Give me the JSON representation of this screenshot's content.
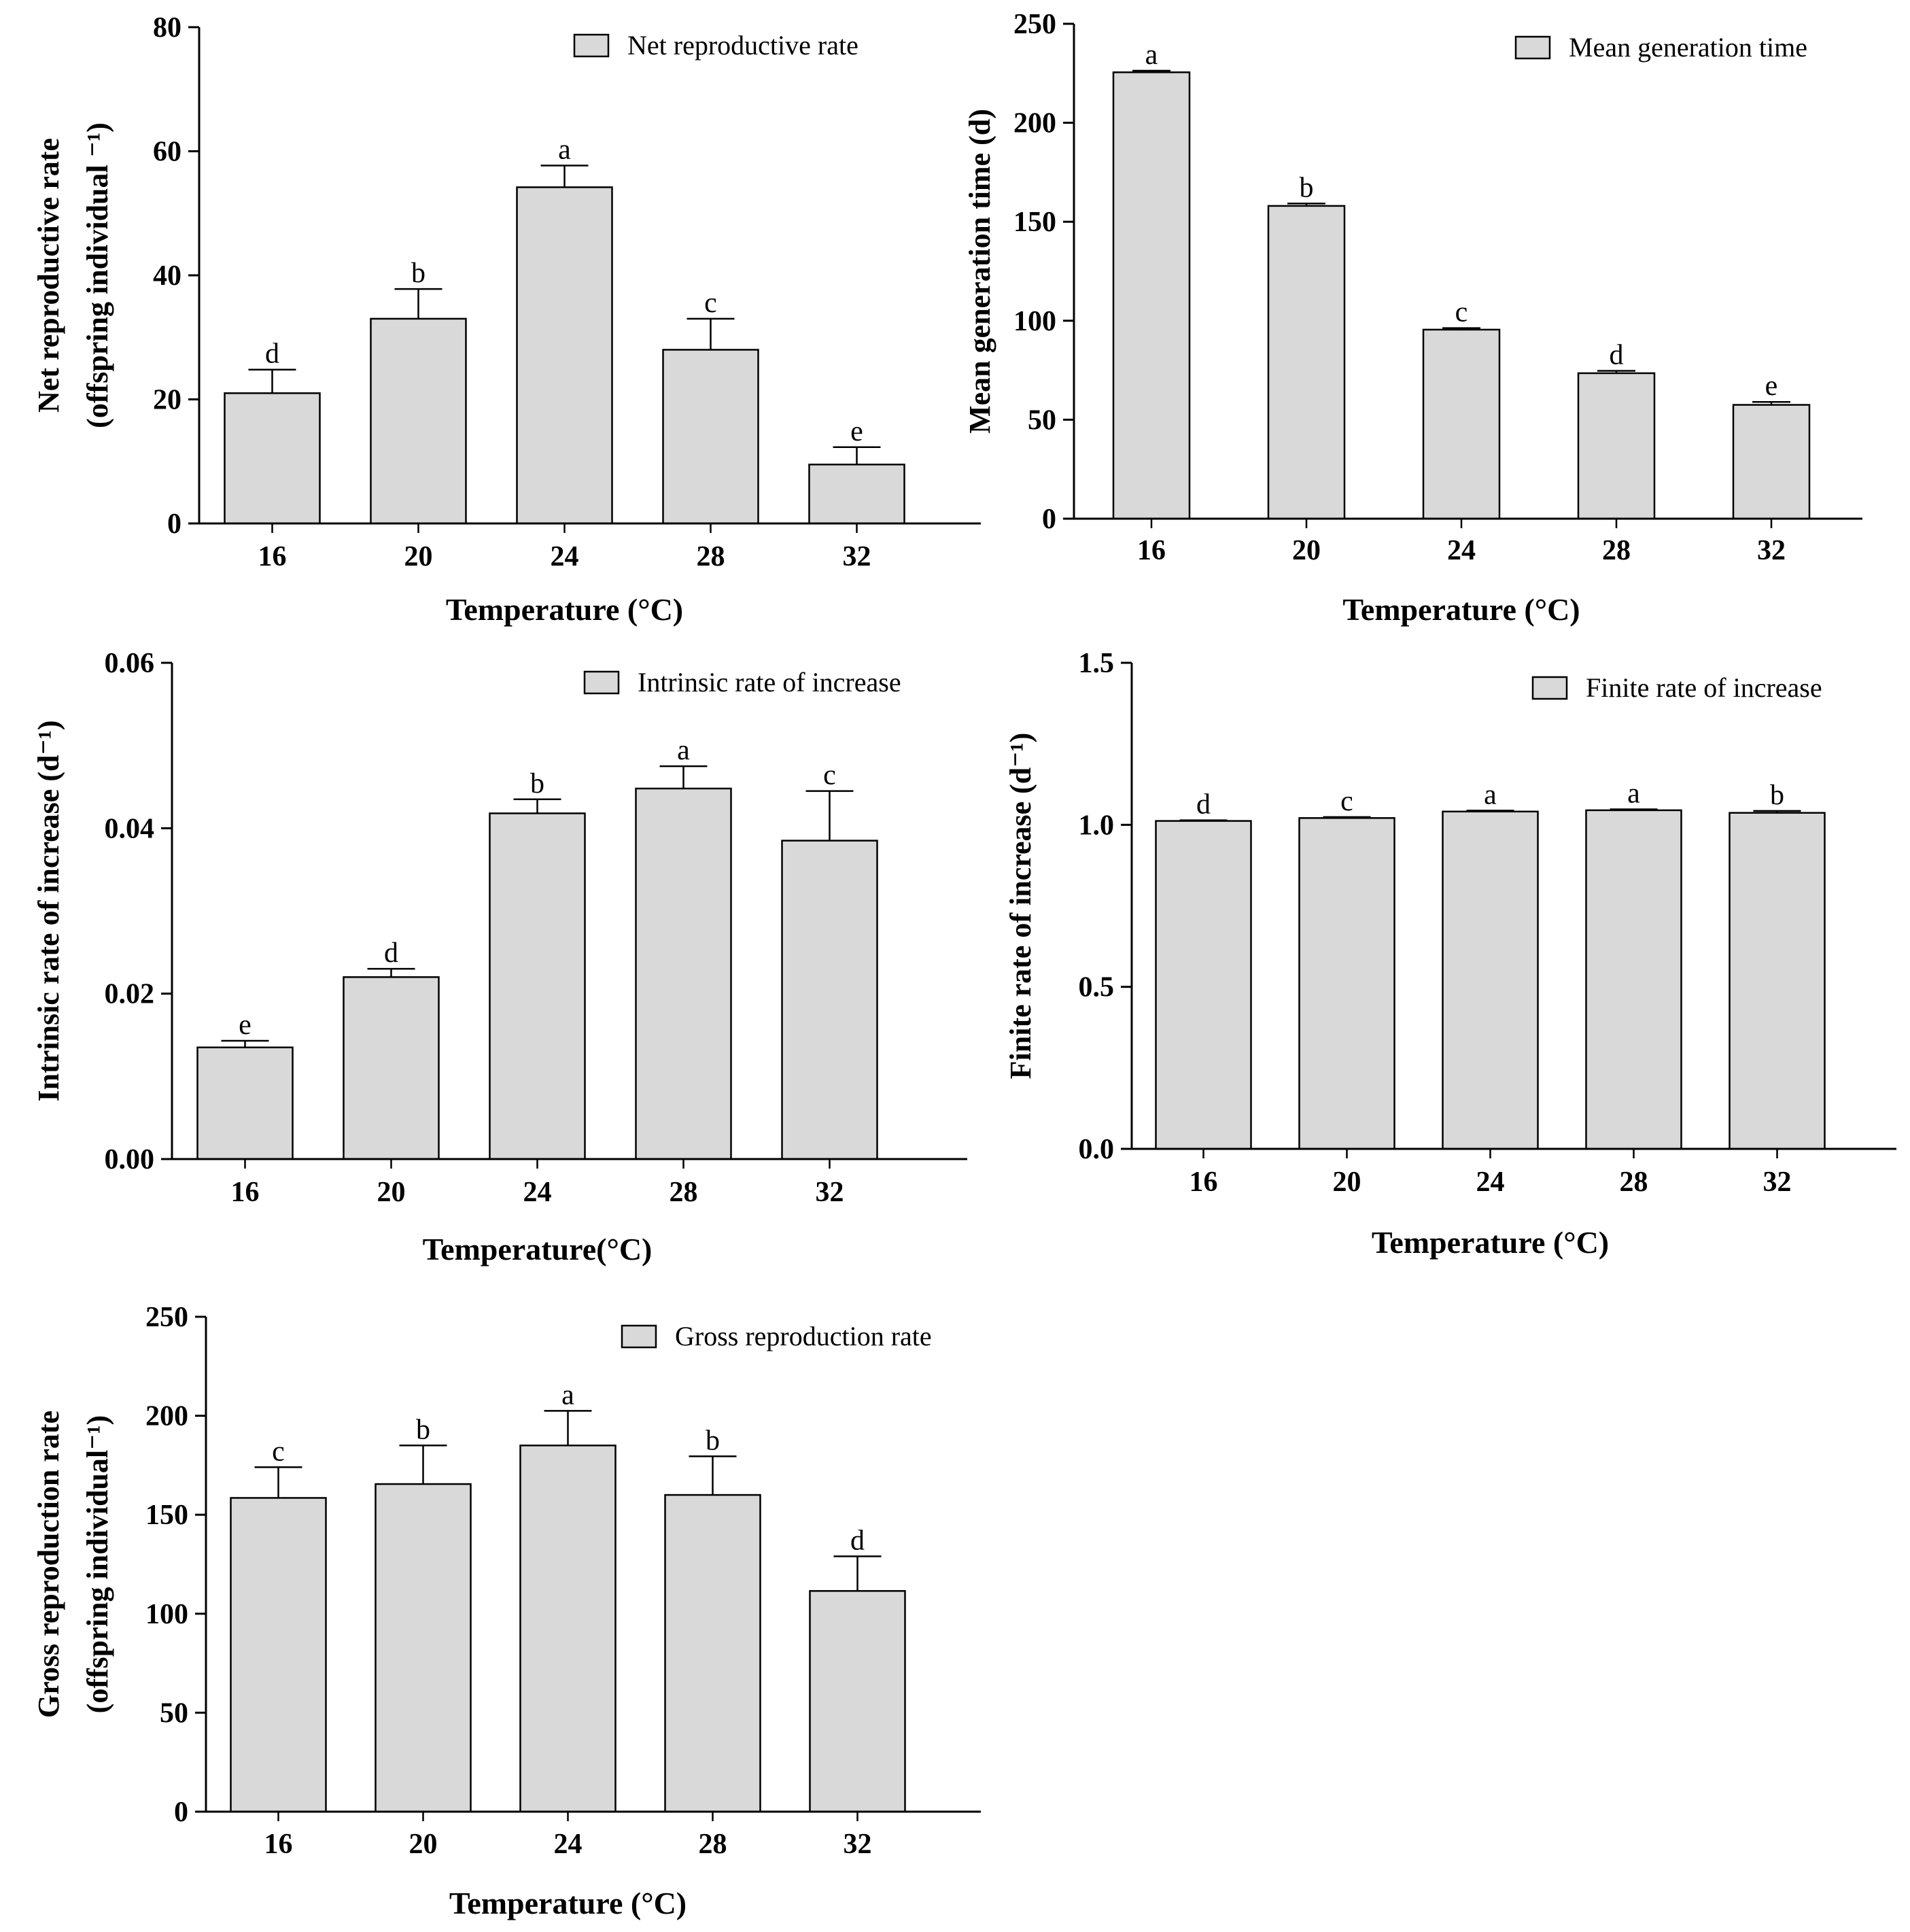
{
  "chart_data": [
    {
      "type": "bar",
      "legend": "Net reproductive rate",
      "ylabel_line1": "Net reproductive rate",
      "ylabel_line2": "(offspring individual ⁻¹)",
      "xlabel": "Temperature (°C)",
      "categories": [
        "16",
        "20",
        "24",
        "28",
        "32"
      ],
      "values": [
        21,
        33,
        54.2,
        28,
        9.5
      ],
      "errors": [
        3.8,
        4.8,
        3.5,
        5.0,
        2.8
      ],
      "letters": [
        "d",
        "b",
        "a",
        "c",
        "e"
      ],
      "ylim": [
        0,
        80
      ],
      "yticks": [
        0,
        20,
        40,
        60,
        80
      ],
      "ytick_labels": [
        "0",
        "20",
        "40",
        "60",
        "80"
      ]
    },
    {
      "type": "bar",
      "legend": "Mean generation time",
      "ylabel_line1": "Mean generation time (d)",
      "ylabel_line2": "",
      "xlabel": "Temperature (°C)",
      "categories": [
        "16",
        "20",
        "24",
        "28",
        "32"
      ],
      "values": [
        225.5,
        158,
        95.5,
        73.5,
        57.5
      ],
      "errors": [
        0.8,
        1.2,
        0.8,
        1.2,
        1.5
      ],
      "letters": [
        "a",
        "b",
        "c",
        "d",
        "e"
      ],
      "ylim": [
        0,
        250
      ],
      "yticks": [
        0,
        50,
        100,
        150,
        200,
        250
      ],
      "ytick_labels": [
        "0",
        "50",
        "100",
        "150",
        "200",
        "250"
      ]
    },
    {
      "type": "bar",
      "legend": "Intrinsic rate of increase",
      "ylabel_line1": "Intrinsic rate of increase  (d⁻¹)",
      "ylabel_line2": "",
      "xlabel": "Temperature(°C)",
      "categories": [
        "16",
        "20",
        "24",
        "28",
        "32"
      ],
      "values": [
        0.0135,
        0.022,
        0.0418,
        0.0448,
        0.0385
      ],
      "errors": [
        0.0008,
        0.001,
        0.0017,
        0.0027,
        0.006
      ],
      "letters": [
        "e",
        "d",
        "b",
        "a",
        "c"
      ],
      "ylim": [
        0,
        0.06
      ],
      "yticks": [
        0,
        0.02,
        0.04,
        0.06
      ],
      "ytick_labels": [
        "0.00",
        "0.02",
        "0.04",
        "0.06"
      ]
    },
    {
      "type": "bar",
      "legend": "Finite rate of increase",
      "ylabel_line1": "Finite rate of increase (d⁻¹)",
      "ylabel_line2": "",
      "xlabel": "Temperature (°C)",
      "categories": [
        "16",
        "20",
        "24",
        "28",
        "32"
      ],
      "values": [
        1.012,
        1.021,
        1.041,
        1.045,
        1.037
      ],
      "errors": [
        0.002,
        0.003,
        0.003,
        0.003,
        0.006
      ],
      "letters": [
        "d",
        "c",
        "a",
        "a",
        "b"
      ],
      "ylim": [
        0,
        1.5
      ],
      "yticks": [
        0,
        0.5,
        1.0,
        1.5
      ],
      "ytick_labels": [
        "0.0",
        "0.5",
        "1.0",
        "1.5"
      ]
    },
    {
      "type": "bar",
      "legend": "Gross reproduction rate",
      "ylabel_line1": "Gross reproduction rate",
      "ylabel_line2": "(offspring individual⁻¹)",
      "xlabel": "Temperature (°C)",
      "categories": [
        "16",
        "20",
        "24",
        "28",
        "32"
      ],
      "values": [
        158.5,
        165.5,
        185,
        160,
        111.5
      ],
      "errors": [
        15.5,
        19.5,
        17.5,
        19.5,
        17.5
      ],
      "letters": [
        "c",
        "b",
        "a",
        "b",
        "d"
      ],
      "ylim": [
        0,
        250
      ],
      "yticks": [
        0,
        50,
        100,
        150,
        200,
        250
      ],
      "ytick_labels": [
        "0",
        "50",
        "100",
        "150",
        "200",
        "250"
      ]
    }
  ],
  "style": {
    "bar_fill": "#d9d9d9",
    "bar_stroke": "#000000",
    "axis_color": "#000000"
  }
}
